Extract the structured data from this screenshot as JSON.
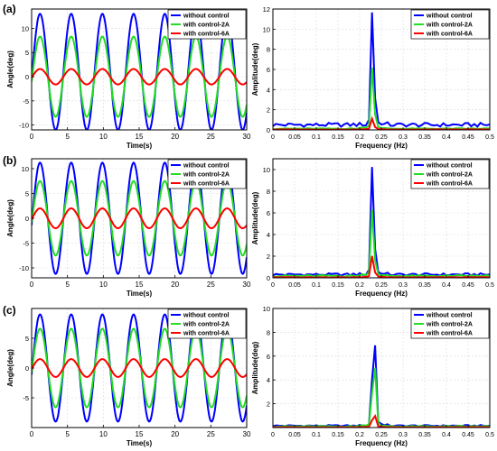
{
  "figure": {
    "rows": [
      {
        "label": "(a)"
      },
      {
        "label": "(b)"
      },
      {
        "label": "(c)"
      }
    ]
  },
  "colors": {
    "without_control": "#0000ff",
    "with_control_2A": "#22dd22",
    "with_control_6A": "#ff0000",
    "grid": "#d9d9d9",
    "axis": "#000000"
  },
  "chart_data": [
    {
      "id": "a-time",
      "type": "line",
      "xlabel": "Time(s)",
      "ylabel": "Angle(deg)",
      "xlim": [
        0,
        30
      ],
      "ylim": [
        -11,
        14
      ],
      "xticks": [
        0,
        5,
        10,
        15,
        20,
        25,
        30
      ],
      "yticks": [
        -10,
        -5,
        0,
        5,
        10
      ],
      "grid": true,
      "legend": "top-right",
      "period_s": 4.35,
      "series": [
        {
          "name": "without control",
          "color": "#0000ff",
          "amplitude": 12.0,
          "offset": 1.0,
          "phase": 0.0
        },
        {
          "name": "with control-2A",
          "color": "#22dd22",
          "amplitude": 8.3,
          "offset": 0.0,
          "phase": 0.05
        },
        {
          "name": "with control-6A",
          "color": "#ff0000",
          "amplitude": 1.6,
          "offset": 0.0,
          "phase": 0.1
        }
      ]
    },
    {
      "id": "a-freq",
      "type": "line",
      "xlabel": "Frequency (Hz)",
      "ylabel": "Amplitude(deg)",
      "xlim": [
        0,
        0.5
      ],
      "ylim": [
        0,
        12
      ],
      "xticks": [
        0,
        0.05,
        0.1,
        0.15,
        0.2,
        0.25,
        0.3,
        0.35,
        0.4,
        0.45,
        0.5
      ],
      "yticks": [
        0,
        2,
        4,
        6,
        8,
        10,
        12
      ],
      "grid": true,
      "legend": "top-right",
      "peak_hz": 0.23,
      "series": [
        {
          "name": "without control",
          "color": "#0000ff",
          "peak": 11.7,
          "baseline": 0.5
        },
        {
          "name": "with control-2A",
          "color": "#22dd22",
          "peak": 6.4,
          "baseline": 0.12
        },
        {
          "name": "with control-6A",
          "color": "#ff0000",
          "peak": 1.1,
          "baseline": 0.04
        }
      ]
    },
    {
      "id": "b-time",
      "type": "line",
      "xlabel": "Time(s)",
      "ylabel": "Angle(deg)",
      "xlim": [
        0,
        30
      ],
      "ylim": [
        -12,
        12
      ],
      "xticks": [
        0,
        5,
        10,
        15,
        20,
        25,
        30
      ],
      "yticks": [
        -10,
        -5,
        0,
        5,
        10
      ],
      "grid": true,
      "legend": "top-right",
      "period_s": 4.35,
      "series": [
        {
          "name": "without control",
          "color": "#0000ff",
          "amplitude": 11.2,
          "offset": 0.0,
          "phase": 0.0
        },
        {
          "name": "with control-2A",
          "color": "#22dd22",
          "amplitude": 7.5,
          "offset": 0.0,
          "phase": 0.05
        },
        {
          "name": "with control-6A",
          "color": "#ff0000",
          "amplitude": 2.0,
          "offset": 0.0,
          "phase": 0.1
        }
      ]
    },
    {
      "id": "b-freq",
      "type": "line",
      "xlabel": "Frequency (Hz)",
      "ylabel": "Amplitude(deg)",
      "xlim": [
        0,
        0.5
      ],
      "ylim": [
        0,
        11
      ],
      "xticks": [
        0,
        0.05,
        0.1,
        0.15,
        0.2,
        0.25,
        0.3,
        0.35,
        0.4,
        0.45,
        0.5
      ],
      "yticks": [
        0,
        2,
        4,
        6,
        8,
        10
      ],
      "grid": true,
      "legend": "top-right",
      "peak_hz": 0.23,
      "series": [
        {
          "name": "without control",
          "color": "#0000ff",
          "peak": 10.4,
          "baseline": 0.3
        },
        {
          "name": "with control-2A",
          "color": "#22dd22",
          "peak": 6.5,
          "baseline": 0.18
        },
        {
          "name": "with control-6A",
          "color": "#ff0000",
          "peak": 2.0,
          "baseline": 0.05
        }
      ]
    },
    {
      "id": "c-time",
      "type": "line",
      "xlabel": "Time(s)",
      "ylabel": "Angle(deg)",
      "xlim": [
        0,
        30
      ],
      "ylim": [
        -10,
        10
      ],
      "xticks": [
        0,
        5,
        10,
        15,
        20,
        25,
        30
      ],
      "yticks": [
        -5,
        0,
        5
      ],
      "grid": true,
      "legend": "top-right",
      "period_s": 4.35,
      "series": [
        {
          "name": "without control",
          "color": "#0000ff",
          "amplitude": 9.0,
          "offset": 0.0,
          "phase": 0.0
        },
        {
          "name": "with control-2A",
          "color": "#22dd22",
          "amplitude": 6.6,
          "offset": 0.0,
          "phase": 0.05
        },
        {
          "name": "with control-6A",
          "color": "#ff0000",
          "amplitude": 1.5,
          "offset": 0.0,
          "phase": 0.1
        }
      ]
    },
    {
      "id": "c-freq",
      "type": "line",
      "xlabel": "Frequency (Hz)",
      "ylabel": "Amplitude(deg)",
      "xlim": [
        0,
        0.5
      ],
      "ylim": [
        0,
        10
      ],
      "xticks": [
        0,
        0.05,
        0.1,
        0.15,
        0.2,
        0.25,
        0.3,
        0.35,
        0.4,
        0.45,
        0.5
      ],
      "yticks": [
        2,
        4,
        6,
        8,
        10
      ],
      "grid": true,
      "legend": "top-right",
      "peak_hz": 0.233,
      "series": [
        {
          "name": "without control",
          "color": "#0000ff",
          "peak": 9.2,
          "baseline": 0.15
        },
        {
          "name": "with control-2A",
          "color": "#22dd22",
          "peak": 6.8,
          "baseline": 0.1
        },
        {
          "name": "with control-6A",
          "color": "#ff0000",
          "peak": 1.3,
          "baseline": 0.03
        }
      ]
    }
  ]
}
